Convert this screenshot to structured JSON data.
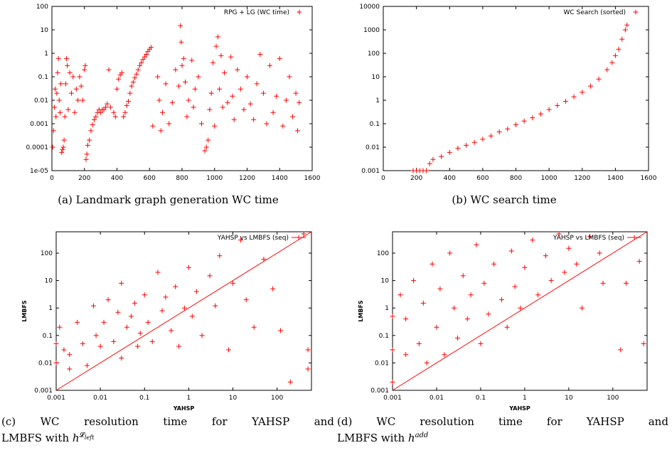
{
  "colors": {
    "series": "#ff0000",
    "frame": "#000000"
  },
  "chart_data": [
    {
      "id": "a",
      "type": "scatter",
      "legend": "RPG + LG (WC time)",
      "xlim": [
        0,
        1600
      ],
      "ylim": [
        1e-05,
        100
      ],
      "ylog": true,
      "xticks": [
        "0",
        "200",
        "400",
        "600",
        "800",
        "1000",
        "1200",
        "1400",
        "1600"
      ],
      "yticks": [
        "1e-05",
        "0.0001",
        "0.001",
        "0.01",
        "0.1",
        "1",
        "10",
        "100"
      ],
      "points": [
        [
          5,
          0.0001
        ],
        [
          10,
          0.0005
        ],
        [
          15,
          0.005
        ],
        [
          20,
          0.03
        ],
        [
          25,
          0.002
        ],
        [
          30,
          0.02
        ],
        [
          35,
          0.15
        ],
        [
          40,
          0.6
        ],
        [
          45,
          0.01
        ],
        [
          50,
          0.003
        ],
        [
          55,
          0.05
        ],
        [
          60,
          6e-05
        ],
        [
          65,
          8e-05
        ],
        [
          70,
          0.0001
        ],
        [
          75,
          0.0002
        ],
        [
          80,
          0.002
        ],
        [
          85,
          0.05
        ],
        [
          90,
          0.6
        ],
        [
          95,
          0.3
        ],
        [
          100,
          0.004
        ],
        [
          110,
          0.15
        ],
        [
          120,
          0.02
        ],
        [
          130,
          0.1
        ],
        [
          140,
          0.003
        ],
        [
          150,
          0.03
        ],
        [
          160,
          0.01
        ],
        [
          170,
          0.1
        ],
        [
          180,
          0.04
        ],
        [
          190,
          0.01
        ],
        [
          200,
          0.2
        ],
        [
          205,
          0.3
        ],
        [
          210,
          3e-05
        ],
        [
          215,
          5e-05
        ],
        [
          220,
          0.00012
        ],
        [
          230,
          0.0002
        ],
        [
          240,
          0.0005
        ],
        [
          250,
          0.0009
        ],
        [
          260,
          0.0015
        ],
        [
          270,
          0.002
        ],
        [
          280,
          0.003
        ],
        [
          290,
          0.004
        ],
        [
          300,
          0.003
        ],
        [
          310,
          0.004
        ],
        [
          320,
          0.004
        ],
        [
          330,
          0.005
        ],
        [
          340,
          0.007
        ],
        [
          350,
          0.2
        ],
        [
          360,
          0.005
        ],
        [
          380,
          0.003
        ],
        [
          390,
          0.002
        ],
        [
          400,
          0.03
        ],
        [
          410,
          0.08
        ],
        [
          420,
          0.12
        ],
        [
          430,
          0.15
        ],
        [
          440,
          0.002
        ],
        [
          450,
          0.003
        ],
        [
          460,
          0.006
        ],
        [
          470,
          0.009
        ],
        [
          480,
          0.02
        ],
        [
          490,
          0.04
        ],
        [
          500,
          0.06
        ],
        [
          510,
          0.09
        ],
        [
          520,
          0.13
        ],
        [
          530,
          0.2
        ],
        [
          540,
          0.3
        ],
        [
          550,
          0.4
        ],
        [
          560,
          0.55
        ],
        [
          570,
          0.7
        ],
        [
          580,
          0.9
        ],
        [
          590,
          1.2
        ],
        [
          600,
          1.5
        ],
        [
          610,
          1.8
        ],
        [
          620,
          0.0008
        ],
        [
          650,
          0.1
        ],
        [
          660,
          0.01
        ],
        [
          670,
          0.0005
        ],
        [
          680,
          0.003
        ],
        [
          700,
          0.05
        ],
        [
          720,
          0.001
        ],
        [
          740,
          0.008
        ],
        [
          760,
          0.2
        ],
        [
          780,
          0.04
        ],
        [
          790,
          15
        ],
        [
          795,
          3
        ],
        [
          800,
          0.3
        ],
        [
          810,
          0.6
        ],
        [
          820,
          0.06
        ],
        [
          830,
          0.002
        ],
        [
          840,
          0.01
        ],
        [
          860,
          0.5
        ],
        [
          870,
          0.005
        ],
        [
          880,
          0.03
        ],
        [
          900,
          0.1
        ],
        [
          920,
          0.001
        ],
        [
          940,
          7e-05
        ],
        [
          950,
          0.0001
        ],
        [
          960,
          0.0002
        ],
        [
          970,
          0.004
        ],
        [
          980,
          0.02
        ],
        [
          990,
          0.4
        ],
        [
          1000,
          0.0008
        ],
        [
          1010,
          2
        ],
        [
          1020,
          5
        ],
        [
          1030,
          0.03
        ],
        [
          1040,
          0.8
        ],
        [
          1050,
          0.005
        ],
        [
          1060,
          0.15
        ],
        [
          1080,
          0.008
        ],
        [
          1100,
          0.7
        ],
        [
          1110,
          0.015
        ],
        [
          1120,
          0.0015
        ],
        [
          1140,
          0.2
        ],
        [
          1160,
          0.03
        ],
        [
          1180,
          0.004
        ],
        [
          1200,
          0.1
        ],
        [
          1220,
          0.007
        ],
        [
          1240,
          0.0015
        ],
        [
          1260,
          0.05
        ],
        [
          1280,
          0.9
        ],
        [
          1300,
          0.02
        ],
        [
          1320,
          0.001
        ],
        [
          1340,
          0.3
        ],
        [
          1360,
          0.003
        ],
        [
          1380,
          0.015
        ],
        [
          1400,
          0.6
        ],
        [
          1420,
          0.0008
        ],
        [
          1440,
          0.01
        ],
        [
          1460,
          0.1
        ],
        [
          1480,
          0.002
        ],
        [
          1500,
          0.02
        ],
        [
          1510,
          0.0005
        ],
        [
          1520,
          0.008
        ]
      ]
    },
    {
      "id": "b",
      "type": "scatter",
      "legend": "WC Search (sorted)",
      "xlim": [
        0,
        1600
      ],
      "ylim": [
        0.001,
        10000
      ],
      "ylog": true,
      "xticks": [
        "0",
        "200",
        "400",
        "600",
        "800",
        "1000",
        "1200",
        "1400",
        "1600"
      ],
      "yticks": [
        "0.001",
        "0.01",
        "0.1",
        "1",
        "10",
        "100",
        "1000",
        "10000"
      ],
      "points": [
        [
          180,
          0.001
        ],
        [
          200,
          0.001
        ],
        [
          220,
          0.001
        ],
        [
          240,
          0.001
        ],
        [
          260,
          0.001
        ],
        [
          280,
          0.002
        ],
        [
          300,
          0.003
        ],
        [
          350,
          0.004
        ],
        [
          400,
          0.006
        ],
        [
          450,
          0.009
        ],
        [
          500,
          0.012
        ],
        [
          550,
          0.016
        ],
        [
          600,
          0.022
        ],
        [
          650,
          0.03
        ],
        [
          700,
          0.045
        ],
        [
          750,
          0.06
        ],
        [
          800,
          0.09
        ],
        [
          850,
          0.13
        ],
        [
          900,
          0.18
        ],
        [
          950,
          0.26
        ],
        [
          1000,
          0.4
        ],
        [
          1050,
          0.6
        ],
        [
          1100,
          0.9
        ],
        [
          1150,
          1.4
        ],
        [
          1200,
          2.2
        ],
        [
          1250,
          4
        ],
        [
          1300,
          8
        ],
        [
          1350,
          20
        ],
        [
          1380,
          40
        ],
        [
          1400,
          80
        ],
        [
          1420,
          150
        ],
        [
          1440,
          400
        ],
        [
          1460,
          1000
        ],
        [
          1470,
          1600
        ]
      ]
    },
    {
      "id": "c",
      "type": "scatter",
      "legend": "YAHSP vs LMBFS (seq)",
      "xlabel": "YAHSP",
      "ylabel": "LMBFS",
      "xlim": [
        0.001,
        600
      ],
      "ylim": [
        0.001,
        600
      ],
      "xlog": true,
      "ylog": true,
      "xticks": [
        "0.001",
        "0.01",
        "0.1",
        "1",
        "10",
        "100"
      ],
      "yticks": [
        "0.001",
        "0.01",
        "0.1",
        "1",
        "10",
        "100"
      ],
      "points": [
        [
          0.001,
          0.01
        ],
        [
          0.001,
          0.05
        ],
        [
          0.0012,
          0.2
        ],
        [
          0.0015,
          0.03
        ],
        [
          0.002,
          0.006
        ],
        [
          0.002,
          0.02
        ],
        [
          0.003,
          0.3
        ],
        [
          0.004,
          0.05
        ],
        [
          0.005,
          0.008
        ],
        [
          0.007,
          1.2
        ],
        [
          0.008,
          0.1
        ],
        [
          0.01,
          0.04
        ],
        [
          0.012,
          0.3
        ],
        [
          0.015,
          2
        ],
        [
          0.02,
          0.06
        ],
        [
          0.025,
          0.7
        ],
        [
          0.03,
          0.015
        ],
        [
          0.03,
          8
        ],
        [
          0.04,
          0.2
        ],
        [
          0.05,
          0.5
        ],
        [
          0.06,
          1.5
        ],
        [
          0.07,
          0.04
        ],
        [
          0.08,
          0.12
        ],
        [
          0.1,
          3
        ],
        [
          0.12,
          0.3
        ],
        [
          0.15,
          0.06
        ],
        [
          0.2,
          20
        ],
        [
          0.25,
          0.8
        ],
        [
          0.3,
          2.5
        ],
        [
          0.4,
          0.15
        ],
        [
          0.5,
          6
        ],
        [
          0.6,
          0.04
        ],
        [
          0.8,
          1
        ],
        [
          1,
          30
        ],
        [
          1.2,
          0.5
        ],
        [
          1.5,
          4
        ],
        [
          2,
          0.1
        ],
        [
          3,
          15
        ],
        [
          4,
          1.2
        ],
        [
          5,
          80
        ],
        [
          8,
          0.03
        ],
        [
          10,
          8
        ],
        [
          15,
          300
        ],
        [
          20,
          2
        ],
        [
          30,
          0.2
        ],
        [
          50,
          60
        ],
        [
          80,
          5
        ],
        [
          120,
          0.15
        ],
        [
          200,
          0.002
        ],
        [
          400,
          500
        ],
        [
          500,
          0.03
        ],
        [
          500,
          0.006
        ]
      ]
    },
    {
      "id": "d",
      "type": "scatter",
      "legend": "YAHSP vs LMBFS (seq)",
      "xlabel": "YAHSP",
      "ylabel": "LMBFS",
      "xlim": [
        0.001,
        600
      ],
      "ylim": [
        0.001,
        600
      ],
      "xlog": true,
      "ylog": true,
      "xticks": [
        "0.001",
        "0.01",
        "0.1",
        "1",
        "10",
        "100"
      ],
      "yticks": [
        "0.001",
        "0.01",
        "0.1",
        "1",
        "10",
        "100"
      ],
      "points": [
        [
          0.001,
          0.002
        ],
        [
          0.001,
          0.03
        ],
        [
          0.001,
          0.5
        ],
        [
          0.0015,
          3
        ],
        [
          0.002,
          0.02
        ],
        [
          0.002,
          0.4
        ],
        [
          0.003,
          10
        ],
        [
          0.004,
          0.05
        ],
        [
          0.005,
          1.5
        ],
        [
          0.006,
          0.01
        ],
        [
          0.008,
          40
        ],
        [
          0.01,
          0.2
        ],
        [
          0.012,
          5
        ],
        [
          0.015,
          0.02
        ],
        [
          0.02,
          100
        ],
        [
          0.025,
          1
        ],
        [
          0.03,
          0.08
        ],
        [
          0.04,
          15
        ],
        [
          0.05,
          0.4
        ],
        [
          0.06,
          3
        ],
        [
          0.08,
          200
        ],
        [
          0.1,
          0.05
        ],
        [
          0.12,
          8
        ],
        [
          0.15,
          0.6
        ],
        [
          0.2,
          40
        ],
        [
          0.3,
          2
        ],
        [
          0.4,
          0.2
        ],
        [
          0.5,
          120
        ],
        [
          0.6,
          6
        ],
        [
          0.8,
          1
        ],
        [
          1,
          30
        ],
        [
          1.5,
          300
        ],
        [
          2,
          3
        ],
        [
          3,
          80
        ],
        [
          4,
          10
        ],
        [
          6,
          500
        ],
        [
          8,
          20
        ],
        [
          10,
          150
        ],
        [
          15,
          40
        ],
        [
          20,
          1
        ],
        [
          30,
          400
        ],
        [
          50,
          100
        ],
        [
          60,
          8
        ],
        [
          150,
          0.03
        ],
        [
          200,
          8
        ],
        [
          400,
          50
        ],
        [
          500,
          0.05
        ]
      ]
    }
  ],
  "captions": {
    "a": "(a) Landmark graph generation WC time",
    "b": "(b) WC search time",
    "c": {
      "label": "(c)",
      "words": [
        "WC",
        "resolution",
        "time",
        "for",
        "YAHSP",
        "and"
      ],
      "line2": "LMBFS with ",
      "h": "h",
      "sup": "𝓛",
      "sup_sub": "left"
    },
    "d": {
      "label": "(d)",
      "words": [
        "WC",
        "resolution",
        "time",
        "for",
        "YAHSP",
        "and"
      ],
      "line2": "LMBFS with ",
      "h": "h",
      "sup": "add"
    }
  }
}
